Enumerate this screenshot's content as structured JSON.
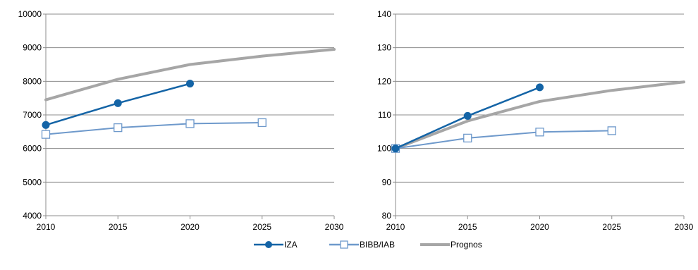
{
  "chart_data": [
    {
      "type": "line",
      "x": [
        2010,
        2015,
        2020,
        2025,
        2030
      ],
      "xlim": [
        2010,
        2030
      ],
      "ylim": [
        4000,
        10000
      ],
      "yticks": [
        4000,
        5000,
        6000,
        7000,
        8000,
        9000,
        10000
      ],
      "grid": true,
      "series": [
        {
          "name": "IZA",
          "x": [
            2010,
            2015,
            2020
          ],
          "values": [
            6700,
            7350,
            7930
          ]
        },
        {
          "name": "BIBB/IAB",
          "x": [
            2010,
            2015,
            2020,
            2025
          ],
          "values": [
            6420,
            6620,
            6740,
            6770
          ]
        },
        {
          "name": "Prognos",
          "x": [
            2010,
            2015,
            2020,
            2025,
            2030
          ],
          "values": [
            7450,
            8060,
            8500,
            8750,
            8950
          ]
        }
      ]
    },
    {
      "type": "line",
      "x": [
        2010,
        2015,
        2020,
        2025,
        2030
      ],
      "xlim": [
        2010,
        2030
      ],
      "ylim": [
        80,
        140
      ],
      "yticks": [
        80,
        90,
        100,
        110,
        120,
        130,
        140
      ],
      "grid": true,
      "series": [
        {
          "name": "IZA",
          "x": [
            2010,
            2015,
            2020
          ],
          "values": [
            100,
            109.7,
            118.2
          ]
        },
        {
          "name": "BIBB/IAB",
          "x": [
            2010,
            2015,
            2020,
            2025
          ],
          "values": [
            100,
            103.1,
            104.9,
            105.3
          ]
        },
        {
          "name": "Prognos",
          "x": [
            2010,
            2015,
            2020,
            2025,
            2030
          ],
          "values": [
            100,
            108.2,
            114,
            117.3,
            119.8
          ]
        }
      ]
    }
  ],
  "legend": {
    "position": "bottom",
    "items": [
      {
        "label": "IZA",
        "color": "#1464a6",
        "marker": "filled-circle"
      },
      {
        "label": "BIBB/IAB",
        "color": "#6e99cb",
        "marker": "open-square"
      },
      {
        "label": "Prognos",
        "color": "#a6a6a6",
        "marker": "none"
      }
    ]
  },
  "colors": {
    "IZA": "#1464a6",
    "BIBB/IAB": "#6e99cb",
    "Prognos": "#a6a6a6",
    "grid": "#8c8c8c"
  }
}
